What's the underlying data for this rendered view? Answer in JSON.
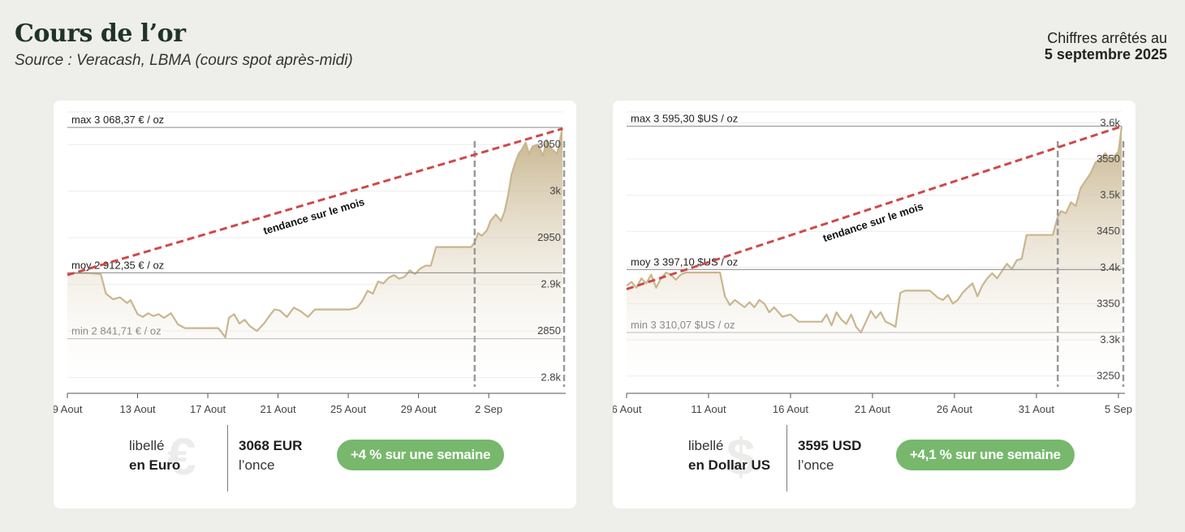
{
  "header": {
    "title": "Cours de l’or",
    "subtitle": "Source : Veracash, LBMA (cours spot après-midi)",
    "asof_label": "Chiffres arrêtés au",
    "asof_date": "5 septembre 2025"
  },
  "colors": {
    "line": "#c9b68e",
    "area_top": "#c2ad82",
    "trend": "#d0484a",
    "badge": "#77b86c",
    "title": "#1f3326"
  },
  "cards": [
    {
      "id": "eur",
      "libelle_line1": "libellé",
      "libelle_line2": "en Euro",
      "ghost_symbol": "€",
      "price": "3068 EUR",
      "price_unit": "l’once",
      "badge": "+4 % sur une semaine"
    },
    {
      "id": "usd",
      "libelle_line1": "libellé",
      "libelle_line2": "en Dollar US",
      "ghost_symbol": "$",
      "price": "3595 USD",
      "price_unit": "l’once",
      "badge": "+4,1 % sur une semaine"
    }
  ],
  "chart_data": [
    {
      "type": "area",
      "title": "",
      "ylim": [
        2790,
        3085
      ],
      "xlim": [
        0,
        28.2
      ],
      "x_ticks": [
        {
          "x": 0,
          "label": "9 Aout"
        },
        {
          "x": 4,
          "label": "13 Aout"
        },
        {
          "x": 8,
          "label": "17 Aout"
        },
        {
          "x": 12,
          "label": "21 Aout"
        },
        {
          "x": 16,
          "label": "25 Aout"
        },
        {
          "x": 20,
          "label": "29 Aout"
        },
        {
          "x": 24,
          "label": "2 Sep"
        }
      ],
      "y_ticks": [
        {
          "y": 3050,
          "label": "3050"
        },
        {
          "y": 3000,
          "label": "3k"
        },
        {
          "y": 2950,
          "label": "2950"
        },
        {
          "y": 2900,
          "label": "2.9k"
        },
        {
          "y": 2850,
          "label": "2850"
        },
        {
          "y": 2800,
          "label": "2.8k"
        }
      ],
      "reference_lines": [
        {
          "y": 3068.37,
          "label": "max 3 068,37 € / oz",
          "kind": "max"
        },
        {
          "y": 2912.35,
          "label": "moy 2 912,35 € / oz",
          "kind": "moy"
        },
        {
          "y": 2841.71,
          "label": "min 2 841,71 € / oz",
          "kind": "min"
        }
      ],
      "week_marker_x": 23.2,
      "trend": {
        "x0": 0,
        "y0": 2910,
        "x1": 28.2,
        "y1": 3067,
        "label": "tendance sur le mois"
      },
      "grid": true,
      "series": [
        {
          "x": [
            0,
            0.6,
            1.2,
            1.9,
            2.2,
            2.6,
            3.0,
            3.4,
            3.6,
            4.0,
            4.3,
            4.6,
            4.9,
            5.2,
            5.5,
            5.9,
            6.3,
            6.7,
            7.1,
            7.6,
            8.1,
            8.6,
            9.0,
            9.2,
            9.5,
            9.8,
            10.1,
            10.4,
            10.8,
            11.2,
            11.5,
            11.8,
            12.1,
            12.5,
            12.9,
            13.3,
            13.7,
            14.1,
            14.5,
            14.9,
            15.3,
            15.7,
            16.1,
            16.5,
            16.8,
            17.1,
            17.4,
            17.7,
            18.0,
            18.3,
            18.6,
            18.9,
            19.2,
            19.5,
            19.8,
            20.1,
            20.4,
            20.7,
            21.0,
            21.3,
            21.6,
            22.0,
            22.5,
            23.0,
            23.2,
            23.4,
            23.6,
            23.9,
            24.1,
            24.4,
            24.7,
            24.9,
            25.1,
            25.3,
            25.5,
            25.7,
            25.9,
            26.1,
            26.3,
            26.5,
            26.8,
            27.1,
            27.3,
            27.6,
            27.9,
            28.2
          ],
          "values": [
            2912,
            2912,
            2912,
            2911,
            2890,
            2884,
            2886,
            2880,
            2883,
            2868,
            2865,
            2869,
            2866,
            2868,
            2864,
            2869,
            2857,
            2853,
            2853,
            2853,
            2853,
            2853,
            2843,
            2864,
            2868,
            2858,
            2862,
            2855,
            2850,
            2858,
            2866,
            2873,
            2872,
            2865,
            2875,
            2871,
            2865,
            2873,
            2873,
            2873,
            2873,
            2873,
            2873,
            2875,
            2882,
            2893,
            2890,
            2903,
            2901,
            2907,
            2910,
            2906,
            2908,
            2915,
            2911,
            2917,
            2920,
            2920,
            2940,
            2940,
            2940,
            2940,
            2940,
            2940,
            2945,
            2955,
            2952,
            2958,
            2968,
            2975,
            2968,
            2978,
            2995,
            3018,
            3030,
            3040,
            3045,
            3052,
            3040,
            3048,
            3050,
            3038,
            3055,
            3045,
            3040,
            3068
          ]
        }
      ]
    },
    {
      "type": "area",
      "title": "",
      "ylim": [
        3235,
        3615
      ],
      "xlim": [
        0,
        30.2
      ],
      "x_ticks": [
        {
          "x": 0,
          "label": "6 Aout"
        },
        {
          "x": 5,
          "label": "11 Aout"
        },
        {
          "x": 10,
          "label": "16 Aout"
        },
        {
          "x": 15,
          "label": "21 Aout"
        },
        {
          "x": 20,
          "label": "26 Aout"
        },
        {
          "x": 25,
          "label": "31 Aout"
        },
        {
          "x": 30,
          "label": "5 Sep"
        }
      ],
      "y_ticks": [
        {
          "y": 3600,
          "label": "3.6k"
        },
        {
          "y": 3550,
          "label": "3550"
        },
        {
          "y": 3500,
          "label": "3.5k"
        },
        {
          "y": 3450,
          "label": "3450"
        },
        {
          "y": 3400,
          "label": "3.4k"
        },
        {
          "y": 3350,
          "label": "3350"
        },
        {
          "y": 3300,
          "label": "3.3k"
        },
        {
          "y": 3250,
          "label": "3250"
        }
      ],
      "reference_lines": [
        {
          "y": 3595.3,
          "label": "max 3 595,30 $US / oz",
          "kind": "max"
        },
        {
          "y": 3397.1,
          "label": "moy 3 397,10 $US / oz",
          "kind": "moy"
        },
        {
          "y": 3310.07,
          "label": "min 3 310,07 $US / oz",
          "kind": "min"
        }
      ],
      "week_marker_x": 26.3,
      "trend": {
        "x0": 0,
        "y0": 3370,
        "x1": 30.2,
        "y1": 3595,
        "label": "tendance sur le mois"
      },
      "grid": true,
      "series": [
        {
          "x": [
            0,
            0.3,
            0.6,
            0.9,
            1.2,
            1.5,
            1.8,
            2.1,
            2.4,
            2.7,
            3.0,
            3.3,
            3.6,
            3.9,
            4.2,
            4.5,
            4.8,
            5.1,
            5.4,
            5.7,
            6.0,
            6.3,
            6.6,
            6.9,
            7.2,
            7.5,
            7.8,
            8.1,
            8.4,
            8.7,
            9.0,
            9.5,
            10.0,
            10.5,
            11.0,
            11.3,
            11.6,
            11.9,
            12.2,
            12.5,
            12.8,
            13.1,
            13.4,
            13.7,
            14.0,
            14.3,
            14.6,
            14.9,
            15.2,
            15.5,
            15.8,
            16.1,
            16.4,
            16.7,
            17.0,
            17.5,
            18.0,
            18.5,
            19.0,
            19.3,
            19.6,
            19.9,
            20.2,
            20.5,
            20.8,
            21.1,
            21.4,
            21.7,
            22.0,
            22.3,
            22.6,
            22.9,
            23.2,
            23.5,
            23.8,
            24.1,
            24.4,
            24.7,
            25.0,
            25.5,
            26.0,
            26.3,
            26.5,
            26.8,
            27.1,
            27.4,
            27.7,
            28.0,
            28.3,
            28.6,
            28.9,
            29.2,
            29.5,
            29.8,
            30.0,
            30.2
          ],
          "values": [
            3375,
            3380,
            3372,
            3385,
            3378,
            3390,
            3372,
            3385,
            3393,
            3390,
            3383,
            3390,
            3393,
            3393,
            3393,
            3393,
            3393,
            3393,
            3393,
            3393,
            3360,
            3348,
            3355,
            3350,
            3345,
            3352,
            3345,
            3355,
            3350,
            3338,
            3345,
            3332,
            3335,
            3325,
            3325,
            3325,
            3325,
            3325,
            3335,
            3320,
            3338,
            3328,
            3322,
            3335,
            3318,
            3310,
            3325,
            3340,
            3330,
            3338,
            3325,
            3322,
            3318,
            3365,
            3368,
            3368,
            3368,
            3368,
            3358,
            3355,
            3362,
            3350,
            3355,
            3365,
            3372,
            3378,
            3360,
            3375,
            3385,
            3392,
            3385,
            3395,
            3405,
            3398,
            3410,
            3412,
            3445,
            3445,
            3445,
            3445,
            3445,
            3470,
            3478,
            3475,
            3490,
            3485,
            3510,
            3520,
            3530,
            3545,
            3550,
            3558,
            3548,
            3555,
            3560,
            3595
          ]
        }
      ]
    }
  ]
}
